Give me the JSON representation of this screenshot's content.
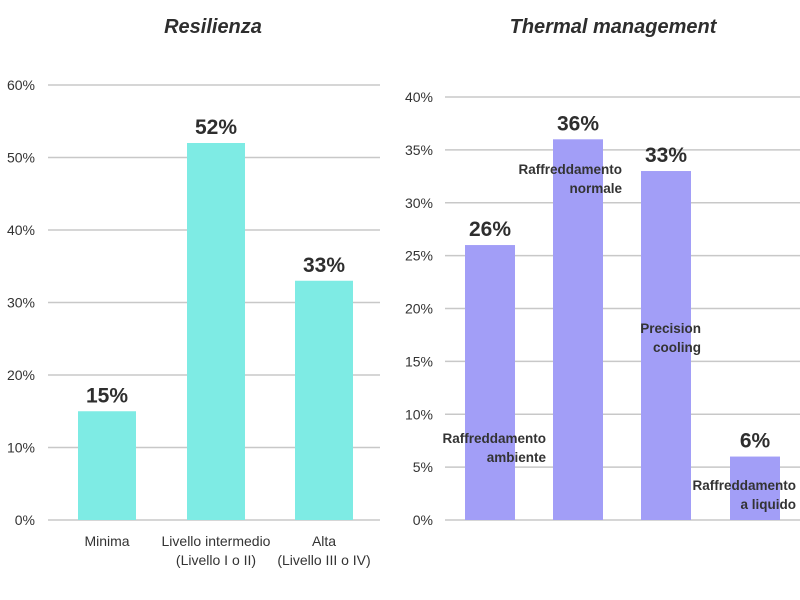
{
  "chart_data": [
    {
      "type": "bar",
      "title": "Resilienza",
      "categories": [
        "Minima",
        "Livello intermedio (Livello I o II)",
        "Alta (Livello III o IV)"
      ],
      "category_lines": [
        [
          "Minima"
        ],
        [
          "Livello intermedio",
          "(Livello I o II)"
        ],
        [
          "Alta",
          "(Livello III o IV)"
        ]
      ],
      "values": [
        15,
        52,
        33
      ],
      "value_labels": [
        "15%",
        "52%",
        "33%"
      ],
      "ylim": [
        0,
        60
      ],
      "yticks": [
        0,
        10,
        20,
        30,
        40,
        50,
        60
      ],
      "ytick_labels": [
        "0%",
        "10%",
        "20%",
        "30%",
        "40%",
        "50%",
        "60%"
      ],
      "xlabel": "",
      "ylabel": "",
      "grid": true,
      "color": "#7eebe4"
    },
    {
      "type": "bar",
      "title": "Thermal management",
      "categories": [
        "Raffreddamento ambiente",
        "Raffreddamento normale",
        "Precision cooling",
        "Raffreddamento a liquido"
      ],
      "category_lines": [
        [
          "Raffreddamento",
          "ambiente"
        ],
        [
          "Raffreddamento",
          "normale"
        ],
        [
          "Precision",
          "cooling"
        ],
        [
          "Raffreddamento",
          "a liquido"
        ]
      ],
      "values": [
        26,
        36,
        33,
        6
      ],
      "value_labels": [
        "26%",
        "36%",
        "33%",
        "6%"
      ],
      "ylim": [
        0,
        40
      ],
      "yticks": [
        0,
        5,
        10,
        15,
        20,
        25,
        30,
        35,
        40
      ],
      "ytick_labels": [
        "0%",
        "5%",
        "10%",
        "15%",
        "20%",
        "25%",
        "30%",
        "35%",
        "40%"
      ],
      "xlabel": "",
      "ylabel": "",
      "grid": true,
      "color": "#a29ef7"
    }
  ]
}
